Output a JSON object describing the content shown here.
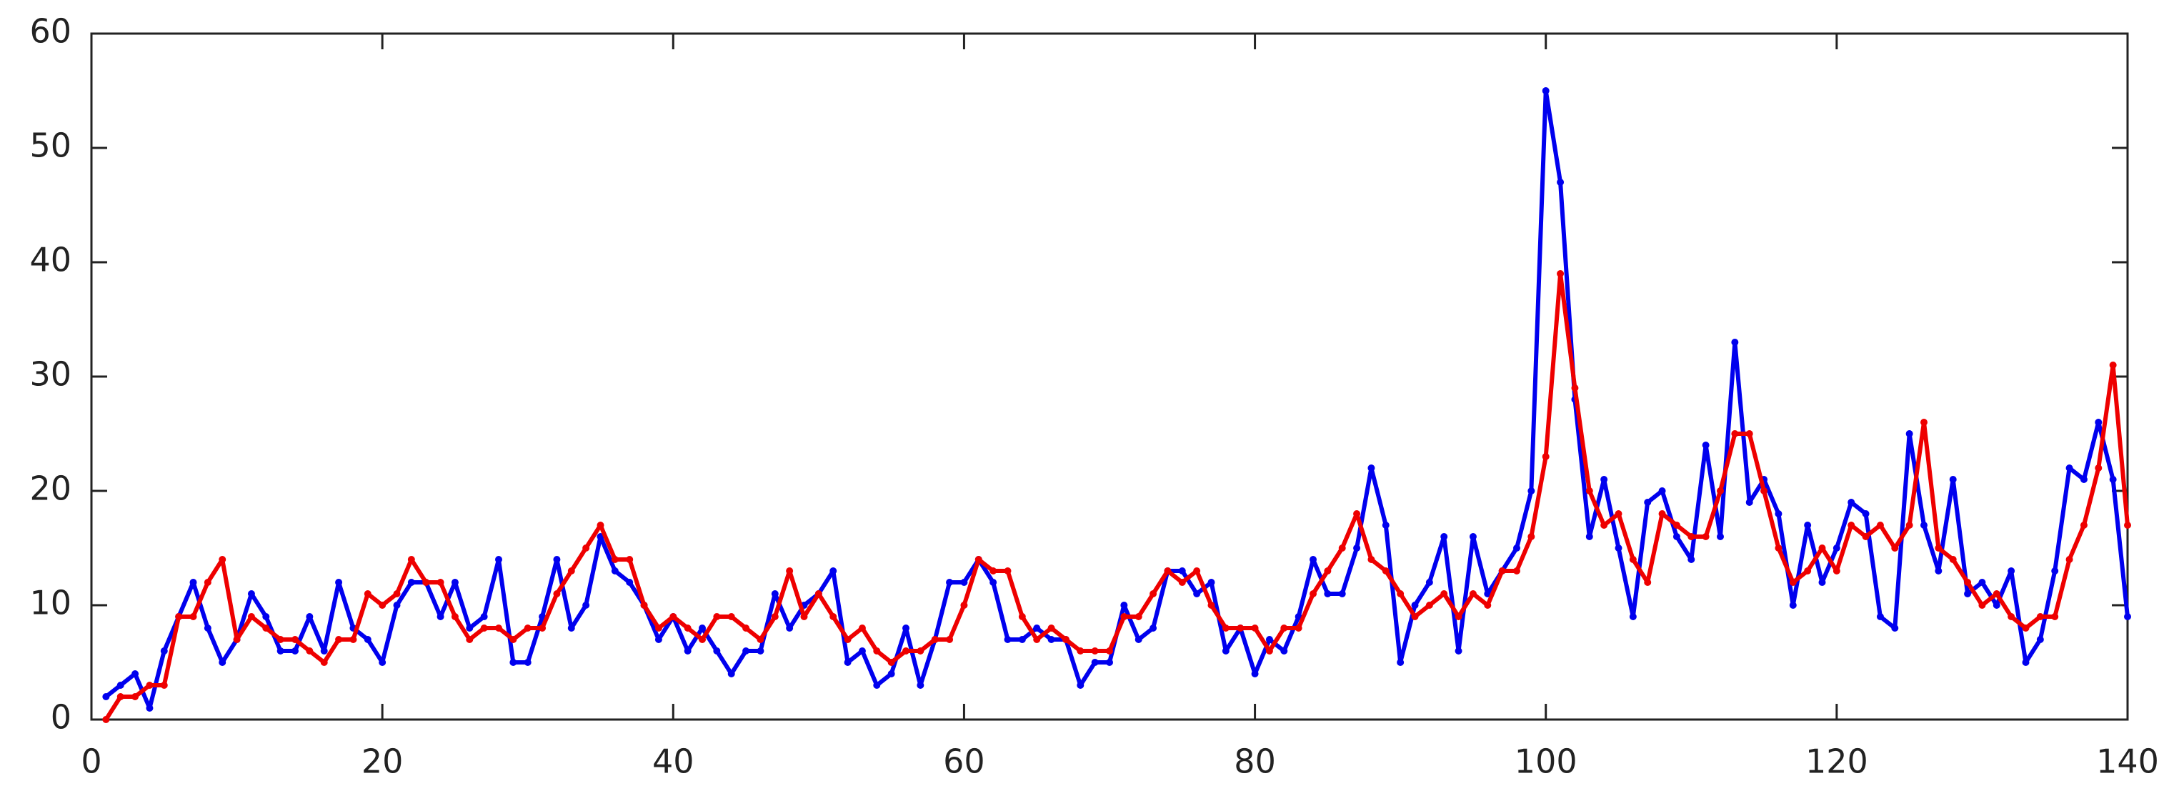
{
  "chart_data": {
    "type": "line",
    "x": [
      1,
      2,
      3,
      4,
      5,
      6,
      7,
      8,
      9,
      10,
      11,
      12,
      13,
      14,
      15,
      16,
      17,
      18,
      19,
      20,
      21,
      22,
      23,
      24,
      25,
      26,
      27,
      28,
      29,
      30,
      31,
      32,
      33,
      34,
      35,
      36,
      37,
      38,
      39,
      40,
      41,
      42,
      43,
      44,
      45,
      46,
      47,
      48,
      49,
      50,
      51,
      52,
      53,
      54,
      55,
      56,
      57,
      58,
      59,
      60,
      61,
      62,
      63,
      64,
      65,
      66,
      67,
      68,
      69,
      70,
      71,
      72,
      73,
      74,
      75,
      76,
      77,
      78,
      79,
      80,
      81,
      82,
      83,
      84,
      85,
      86,
      87,
      88,
      89,
      90,
      91,
      92,
      93,
      94,
      95,
      96,
      97,
      98,
      99,
      100,
      101,
      102,
      103,
      104,
      105,
      106,
      107,
      108,
      109,
      110,
      111,
      112,
      113,
      114,
      115,
      116,
      117,
      118,
      119,
      120,
      121,
      122,
      123,
      124,
      125,
      126,
      127,
      128,
      129,
      130,
      131,
      132,
      133,
      134,
      135,
      136,
      137,
      138,
      139,
      140
    ],
    "series": [
      {
        "color": "#0000ee",
        "values": [
          2,
          3,
          4,
          1,
          6,
          9,
          12,
          8,
          5,
          7,
          11,
          9,
          6,
          6,
          9,
          6,
          12,
          8,
          7,
          5,
          10,
          12,
          12,
          9,
          12,
          8,
          9,
          14,
          5,
          5,
          9,
          14,
          8,
          10,
          16,
          13,
          12,
          10,
          7,
          9,
          6,
          8,
          6,
          4,
          6,
          6,
          11,
          8,
          10,
          11,
          13,
          5,
          6,
          3,
          4,
          8,
          3,
          7,
          12,
          12,
          14,
          12,
          7,
          7,
          8,
          7,
          7,
          3,
          5,
          5,
          10,
          7,
          8,
          13,
          13,
          11,
          12,
          6,
          8,
          4,
          7,
          6,
          9,
          14,
          11,
          11,
          15,
          22,
          17,
          5,
          10,
          12,
          16,
          6,
          16,
          11,
          13,
          15,
          20,
          55,
          47,
          28,
          16,
          21,
          15,
          9,
          19,
          20,
          16,
          14,
          24,
          16,
          33,
          19,
          21,
          18,
          10,
          17,
          12,
          15,
          19,
          18,
          9,
          8,
          25,
          17,
          13,
          21,
          11,
          12,
          10,
          13,
          5,
          7,
          13,
          22,
          21,
          26,
          21,
          9
        ]
      },
      {
        "color": "#ee0000",
        "values": [
          0,
          2,
          2,
          3,
          3,
          9,
          9,
          12,
          14,
          7,
          9,
          8,
          7,
          7,
          6,
          5,
          7,
          7,
          11,
          10,
          11,
          14,
          12,
          12,
          9,
          7,
          8,
          8,
          7,
          8,
          8,
          11,
          13,
          15,
          17,
          14,
          14,
          10,
          8,
          9,
          8,
          7,
          9,
          9,
          8,
          7,
          9,
          13,
          9,
          11,
          9,
          7,
          8,
          6,
          5,
          6,
          6,
          7,
          7,
          10,
          14,
          13,
          13,
          9,
          7,
          8,
          7,
          6,
          6,
          6,
          9,
          9,
          11,
          13,
          12,
          13,
          10,
          8,
          8,
          8,
          6,
          8,
          8,
          11,
          13,
          15,
          18,
          14,
          13,
          11,
          9,
          10,
          11,
          9,
          11,
          10,
          13,
          13,
          16,
          23,
          39,
          29,
          20,
          17,
          18,
          14,
          12,
          18,
          17,
          16,
          16,
          20,
          25,
          25,
          20,
          15,
          12,
          13,
          15,
          13,
          17,
          16,
          17,
          15,
          17,
          26,
          15,
          14,
          12,
          10,
          11,
          9,
          8,
          9,
          9,
          14,
          17,
          22,
          31,
          17
        ]
      }
    ],
    "xlim": [
      0,
      140
    ],
    "xticks": [
      0,
      20,
      40,
      60,
      80,
      100,
      120,
      140
    ],
    "ylim": [
      0,
      60
    ],
    "yticks": [
      0,
      10,
      20,
      30,
      40,
      50,
      60
    ],
    "grid": false
  }
}
